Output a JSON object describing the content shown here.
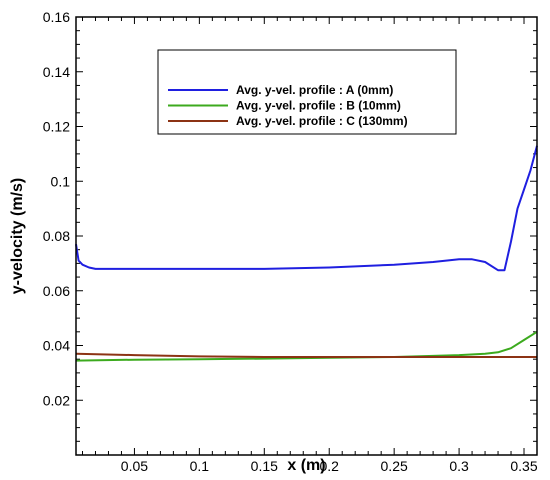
{
  "chart_data": {
    "type": "line",
    "xlabel": "x (m)",
    "ylabel": "y-velocity (m/s)",
    "xlim": [
      0.005,
      0.36
    ],
    "ylim": [
      0,
      0.16
    ],
    "x_ticks": [
      "0.05",
      "0.1",
      "0.15",
      "0.2",
      "0.25",
      "0.3",
      "0.35"
    ],
    "x_tick_values": [
      0.05,
      0.1,
      0.15,
      0.2,
      0.25,
      0.3,
      0.35
    ],
    "y_ticks": [
      "0.02",
      "0.04",
      "0.06",
      "0.08",
      "0.1",
      "0.12",
      "0.14",
      "0.16"
    ],
    "y_tick_values": [
      0.02,
      0.04,
      0.06,
      0.08,
      0.1,
      0.12,
      0.14,
      0.16
    ],
    "grid": false,
    "legend_position": "top-center",
    "series": [
      {
        "name": "Avg. y-vel. profile : A (0mm)",
        "color": "#1f1fe0",
        "x": [
          0.005,
          0.007,
          0.01,
          0.015,
          0.02,
          0.03,
          0.05,
          0.1,
          0.15,
          0.2,
          0.25,
          0.28,
          0.3,
          0.31,
          0.32,
          0.33,
          0.335,
          0.34,
          0.345,
          0.35,
          0.355,
          0.36
        ],
        "y": [
          0.077,
          0.071,
          0.0695,
          0.0685,
          0.068,
          0.068,
          0.068,
          0.068,
          0.068,
          0.0685,
          0.0695,
          0.0705,
          0.0715,
          0.0715,
          0.0705,
          0.0675,
          0.0675,
          0.078,
          0.09,
          0.097,
          0.104,
          0.113
        ]
      },
      {
        "name": "Avg. y-vel. profile : B (10mm)",
        "color": "#3caa1e",
        "x": [
          0.005,
          0.05,
          0.1,
          0.15,
          0.2,
          0.25,
          0.3,
          0.32,
          0.33,
          0.34,
          0.35,
          0.36
        ],
        "y": [
          0.0345,
          0.0348,
          0.035,
          0.0352,
          0.0355,
          0.0358,
          0.0365,
          0.037,
          0.0375,
          0.039,
          0.042,
          0.045
        ]
      },
      {
        "name": "Avg. y-vel. profile : C (130mm)",
        "color": "#8c3314",
        "x": [
          0.005,
          0.05,
          0.1,
          0.15,
          0.2,
          0.25,
          0.3,
          0.36
        ],
        "y": [
          0.037,
          0.0365,
          0.036,
          0.0358,
          0.0358,
          0.0358,
          0.0358,
          0.0358
        ]
      }
    ]
  }
}
